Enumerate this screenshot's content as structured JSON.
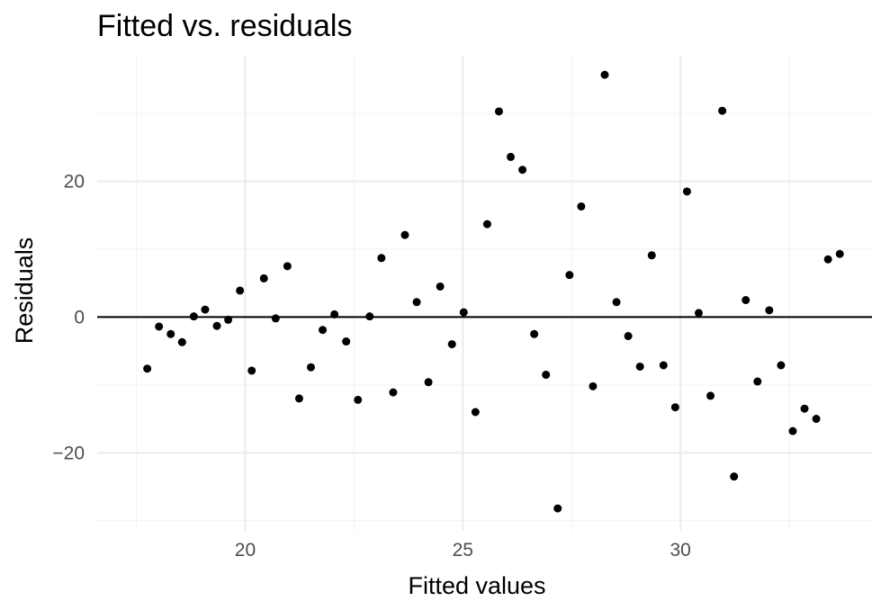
{
  "chart_data": {
    "type": "scatter",
    "title": "Fitted vs. residuals",
    "xlabel": "Fitted values",
    "ylabel": "Residuals",
    "xlim": [
      16.6,
      34.4
    ],
    "ylim": [
      -31.5,
      38.5
    ],
    "x_ticks": [
      20,
      25,
      30
    ],
    "x_tick_labels": [
      "20",
      "25",
      "30"
    ],
    "y_ticks": [
      -20,
      0,
      20
    ],
    "y_tick_labels": [
      "−20",
      "0",
      "20"
    ],
    "x_minor_ticks": [
      17.5,
      22.5,
      27.5,
      32.5
    ],
    "y_minor_ticks": [
      -30,
      -10,
      10,
      30
    ],
    "grid": true,
    "reference_line_y": 0,
    "point_color": "#000000",
    "points": [
      {
        "x": 17.75,
        "y": -7.6
      },
      {
        "x": 18.02,
        "y": -1.4
      },
      {
        "x": 18.29,
        "y": -2.5
      },
      {
        "x": 18.55,
        "y": -3.7
      },
      {
        "x": 18.82,
        "y": 0.1
      },
      {
        "x": 19.08,
        "y": 1.1
      },
      {
        "x": 19.35,
        "y": -1.3
      },
      {
        "x": 19.61,
        "y": -0.4
      },
      {
        "x": 19.88,
        "y": 3.9
      },
      {
        "x": 20.15,
        "y": -7.9
      },
      {
        "x": 20.43,
        "y": 5.7
      },
      {
        "x": 20.7,
        "y": -0.2
      },
      {
        "x": 20.97,
        "y": 7.5
      },
      {
        "x": 21.24,
        "y": -12.0
      },
      {
        "x": 21.51,
        "y": -7.4
      },
      {
        "x": 21.78,
        "y": -1.9
      },
      {
        "x": 22.05,
        "y": 0.4
      },
      {
        "x": 22.32,
        "y": -3.6
      },
      {
        "x": 22.59,
        "y": -12.2
      },
      {
        "x": 22.86,
        "y": 0.1
      },
      {
        "x": 23.13,
        "y": 8.7
      },
      {
        "x": 23.4,
        "y": -11.1
      },
      {
        "x": 23.67,
        "y": 12.1
      },
      {
        "x": 23.94,
        "y": 2.2
      },
      {
        "x": 24.21,
        "y": -9.6
      },
      {
        "x": 24.48,
        "y": 4.5
      },
      {
        "x": 24.75,
        "y": -4.0
      },
      {
        "x": 25.02,
        "y": 0.7
      },
      {
        "x": 25.29,
        "y": -14.0
      },
      {
        "x": 25.56,
        "y": 13.7
      },
      {
        "x": 25.83,
        "y": 30.3
      },
      {
        "x": 26.1,
        "y": 23.6
      },
      {
        "x": 26.37,
        "y": 21.7
      },
      {
        "x": 26.64,
        "y": -2.5
      },
      {
        "x": 26.91,
        "y": -8.5
      },
      {
        "x": 27.18,
        "y": -28.2
      },
      {
        "x": 27.45,
        "y": 6.2
      },
      {
        "x": 27.72,
        "y": 16.3
      },
      {
        "x": 27.99,
        "y": -10.2
      },
      {
        "x": 28.26,
        "y": 35.7
      },
      {
        "x": 28.53,
        "y": 2.2
      },
      {
        "x": 28.8,
        "y": -2.8
      },
      {
        "x": 29.07,
        "y": -7.3
      },
      {
        "x": 29.34,
        "y": 9.1
      },
      {
        "x": 29.61,
        "y": -7.1
      },
      {
        "x": 29.88,
        "y": -13.3
      },
      {
        "x": 30.15,
        "y": 18.5
      },
      {
        "x": 30.42,
        "y": 0.6
      },
      {
        "x": 30.69,
        "y": -11.6
      },
      {
        "x": 30.96,
        "y": 30.4
      },
      {
        "x": 31.23,
        "y": -23.5
      },
      {
        "x": 31.5,
        "y": 2.5
      },
      {
        "x": 31.77,
        "y": -9.5
      },
      {
        "x": 32.04,
        "y": 1.0
      },
      {
        "x": 32.31,
        "y": -7.1
      },
      {
        "x": 32.58,
        "y": -16.8
      },
      {
        "x": 32.85,
        "y": -13.5
      },
      {
        "x": 33.12,
        "y": -15.0
      },
      {
        "x": 33.39,
        "y": 8.5
      },
      {
        "x": 33.66,
        "y": 9.3
      }
    ]
  }
}
